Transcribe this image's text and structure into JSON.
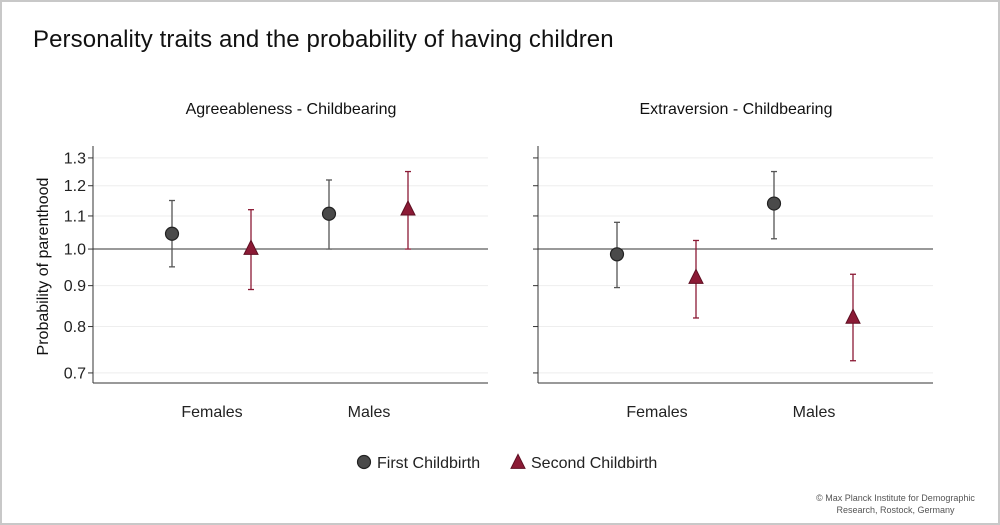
{
  "title": "Personality traits and the probability of having children",
  "credit": "© Max Planck Institute for Demographic Research, Rostock, Germany",
  "colors": {
    "first": "#4a4a4a",
    "first_stroke": "#222222",
    "second": "#8b1a35",
    "error_first": "#555555",
    "error_second": "#8b1a35",
    "axis": "#333333",
    "grid": "#eeeeee",
    "reference": "#333333"
  },
  "chart_data": [
    {
      "type": "scatter",
      "title": "Agreeableness - Childbearing",
      "ylabel": "Probability of parenthood",
      "y_scale": "log",
      "ylim": [
        0.68,
        1.33
      ],
      "yticks": [
        0.7,
        0.8,
        0.9,
        1.0,
        1.1,
        1.2,
        1.3
      ],
      "ytick_labels": [
        "0.7",
        "0.8",
        "0.9",
        "1.0",
        "1.1",
        "1.2",
        "1.3"
      ],
      "reference_line": 1.0,
      "categories": [
        "Females",
        "Males"
      ],
      "series": [
        {
          "name": "First Childbirth",
          "marker": "circle",
          "values": [
            1.045,
            1.107
          ],
          "lower": [
            0.95,
            1.0
          ],
          "upper": [
            1.15,
            1.22
          ]
        },
        {
          "name": "Second Childbirth",
          "marker": "triangle",
          "values": [
            1.0,
            1.12
          ],
          "lower": [
            0.89,
            1.0
          ],
          "upper": [
            1.12,
            1.25
          ]
        }
      ]
    },
    {
      "type": "scatter",
      "title": "Extraversion - Childbearing",
      "ylabel": "",
      "y_scale": "log",
      "ylim": [
        0.68,
        1.33
      ],
      "yticks": [
        0.7,
        0.8,
        0.9,
        1.0,
        1.1,
        1.2,
        1.3
      ],
      "ytick_labels": [],
      "reference_line": 1.0,
      "categories": [
        "Females",
        "Males"
      ],
      "series": [
        {
          "name": "First Childbirth",
          "marker": "circle",
          "values": [
            0.985,
            1.14
          ],
          "lower": [
            0.895,
            1.03
          ],
          "upper": [
            1.08,
            1.25
          ]
        },
        {
          "name": "Second Childbirth",
          "marker": "triangle",
          "values": [
            0.92,
            0.82
          ],
          "lower": [
            0.82,
            0.725
          ],
          "upper": [
            1.025,
            0.93
          ]
        }
      ]
    }
  ],
  "legend": {
    "placement": "bottom-center",
    "items": [
      {
        "label": "First Childbirth",
        "marker": "circle"
      },
      {
        "label": "Second Childbirth",
        "marker": "triangle"
      }
    ]
  }
}
